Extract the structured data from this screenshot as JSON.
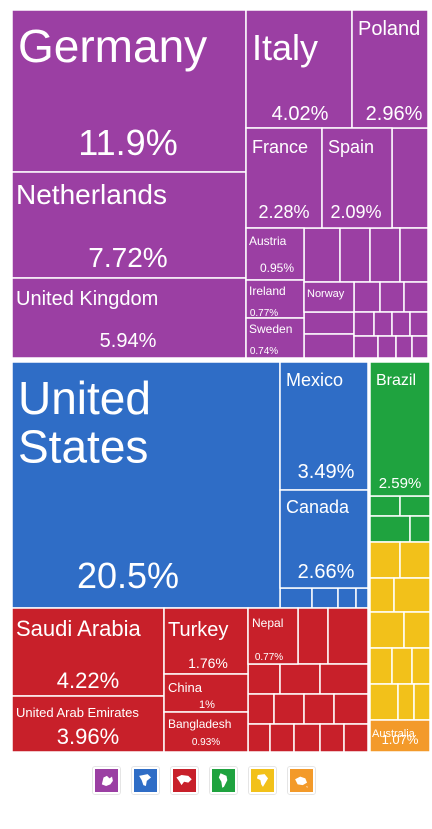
{
  "chart_data": {
    "type": "treemap",
    "unit": "%",
    "groups": [
      {
        "name": "Europe",
        "color": "#9b3fa3",
        "items": [
          {
            "label": "Germany",
            "value": 11.9,
            "value_text": "11.9%"
          },
          {
            "label": "Netherlands",
            "value": 7.72,
            "value_text": "7.72%"
          },
          {
            "label": "United Kingdom",
            "value": 5.94,
            "value_text": "5.94%"
          },
          {
            "label": "Italy",
            "value": 4.02,
            "value_text": "4.02%"
          },
          {
            "label": "Poland",
            "value": 2.96,
            "value_text": "2.96%"
          },
          {
            "label": "France",
            "value": 2.28,
            "value_text": "2.28%"
          },
          {
            "label": "Spain",
            "value": 2.09,
            "value_text": "2.09%"
          },
          {
            "label": "Austria",
            "value": 0.95,
            "value_text": "0.95%"
          },
          {
            "label": "Ireland",
            "value": 0.77,
            "value_text": "0.77%"
          },
          {
            "label": "Norway",
            "value": null,
            "value_text": ""
          },
          {
            "label": "Sweden",
            "value": 0.74,
            "value_text": "0.74%"
          }
        ]
      },
      {
        "name": "North America",
        "color": "#2f6dc6",
        "items": [
          {
            "label": "United States",
            "value": 20.5,
            "value_text": "20.5%"
          },
          {
            "label": "Mexico",
            "value": 3.49,
            "value_text": "3.49%"
          },
          {
            "label": "Canada",
            "value": 2.66,
            "value_text": "2.66%"
          }
        ]
      },
      {
        "name": "Asia",
        "color": "#c8202a",
        "items": [
          {
            "label": "Saudi Arabia",
            "value": 4.22,
            "value_text": "4.22%"
          },
          {
            "label": "United Arab Emirates",
            "value": 3.96,
            "value_text": "3.96%"
          },
          {
            "label": "Turkey",
            "value": 1.76,
            "value_text": "1.76%"
          },
          {
            "label": "China",
            "value": 1.0,
            "value_text": "1%"
          },
          {
            "label": "Bangladesh",
            "value": 0.93,
            "value_text": "0.93%"
          },
          {
            "label": "Nepal",
            "value": 0.77,
            "value_text": "0.77%"
          }
        ]
      },
      {
        "name": "South America",
        "color": "#1fa33f",
        "items": [
          {
            "label": "Brazil",
            "value": 2.59,
            "value_text": "2.59%"
          }
        ]
      },
      {
        "name": "Africa",
        "color": "#f2c11a",
        "items": []
      },
      {
        "name": "Oceania",
        "color": "#f39a2a",
        "items": [
          {
            "label": "Australia",
            "value": 1.07,
            "value_text": "1.07%"
          }
        ]
      }
    ]
  },
  "legend": [
    {
      "name": "europe-icon",
      "color": "#9b3fa3"
    },
    {
      "name": "north-america-icon",
      "color": "#2f6dc6"
    },
    {
      "name": "asia-icon",
      "color": "#c8202a"
    },
    {
      "name": "south-america-icon",
      "color": "#1fa33f"
    },
    {
      "name": "africa-icon",
      "color": "#f2c11a"
    },
    {
      "name": "oceania-icon",
      "color": "#f39a2a"
    }
  ]
}
